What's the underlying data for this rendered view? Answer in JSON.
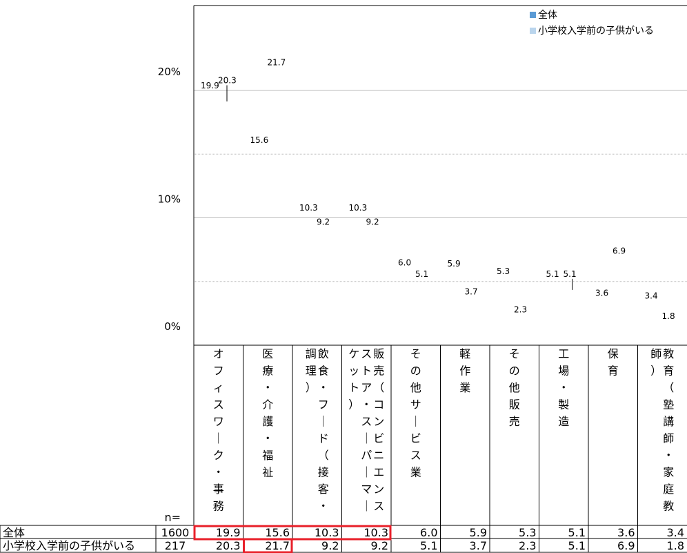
{
  "chart_data": {
    "type": "bar",
    "ylabel": "",
    "ylim": [
      0,
      25
    ],
    "yticks": [
      {
        "value": 0,
        "label": "0%"
      },
      {
        "value": 10,
        "label": "10%"
      },
      {
        "value": 20,
        "label": "20%"
      }
    ],
    "grid": true,
    "legend_position": "top-right",
    "categories": [
      "オフィスワーク・事務",
      "医療・介護・福祉",
      "飲食・フード（接客・調理）",
      "販売（コンビニエンスストア・スーパーマーケット）",
      "その他サービス業",
      "軽作業",
      "その他販売",
      "工場・製造",
      "保育",
      "教育（塾講師・家庭教師）"
    ],
    "category_columns": [
      [
        "オ",
        "フ",
        "ィ",
        "ス",
        "ワ",
        "｜",
        "ク",
        "・",
        "事",
        "務"
      ],
      [
        "医",
        "療",
        "・",
        "介",
        "護",
        "・",
        "福",
        "祉"
      ],
      [
        "飲",
        "食",
        "・",
        "フ",
        "｜",
        "ド",
        "（",
        "接",
        "客",
        "・",
        "調",
        "理",
        "）"
      ],
      [
        "販",
        "売",
        "（",
        "コ",
        "ン",
        "ビ",
        "ニ",
        "エ",
        "ン",
        "ス",
        "ス",
        "ト",
        "ア",
        "・",
        "ス",
        "｜",
        "パ",
        "｜",
        "マ",
        "｜",
        "ケ",
        "ッ",
        "ト",
        "）"
      ],
      [
        "そ",
        "の",
        "他",
        "サ",
        "｜",
        "ビ",
        "ス",
        "業"
      ],
      [
        "軽",
        "作",
        "業"
      ],
      [
        "そ",
        "の",
        "他",
        "販",
        "売"
      ],
      [
        "工",
        "場",
        "・",
        "製",
        "造"
      ],
      [
        "保",
        "育"
      ],
      [
        "教",
        "育",
        "（",
        "塾",
        "講",
        "師",
        "・",
        "家",
        "庭",
        "教",
        "師",
        "）"
      ]
    ],
    "series": [
      {
        "name": "全体",
        "n": "1600",
        "values": [
          19.9,
          15.6,
          10.3,
          10.3,
          6.0,
          5.9,
          5.3,
          5.1,
          3.6,
          3.4
        ],
        "labels": [
          "19.9",
          "15.6",
          "10.3",
          "10.3",
          "6.0",
          "5.9",
          "5.3",
          "5.1",
          "3.6",
          "3.4"
        ]
      },
      {
        "name": "小学校入学前の子供がいる",
        "n": "217",
        "values": [
          20.3,
          21.7,
          9.2,
          9.2,
          5.1,
          3.7,
          2.3,
          5.1,
          6.9,
          1.8
        ],
        "labels": [
          "20.3",
          "21.7",
          "9.2",
          "9.2",
          "5.1",
          "3.7",
          "2.3",
          "5.1",
          "6.9",
          "1.8"
        ]
      }
    ],
    "n_label": "n=",
    "highlighted_cells": [
      {
        "series": 0,
        "categories": [
          0,
          1,
          2,
          3
        ]
      },
      {
        "series": 1,
        "categories": [
          1
        ]
      }
    ]
  },
  "colors": {
    "highlight": "#e8202a",
    "legend_all": "#5b9bd5",
    "legend_child": "#9dc3e6",
    "grid": "#bbbbbb",
    "line": "#000000"
  }
}
